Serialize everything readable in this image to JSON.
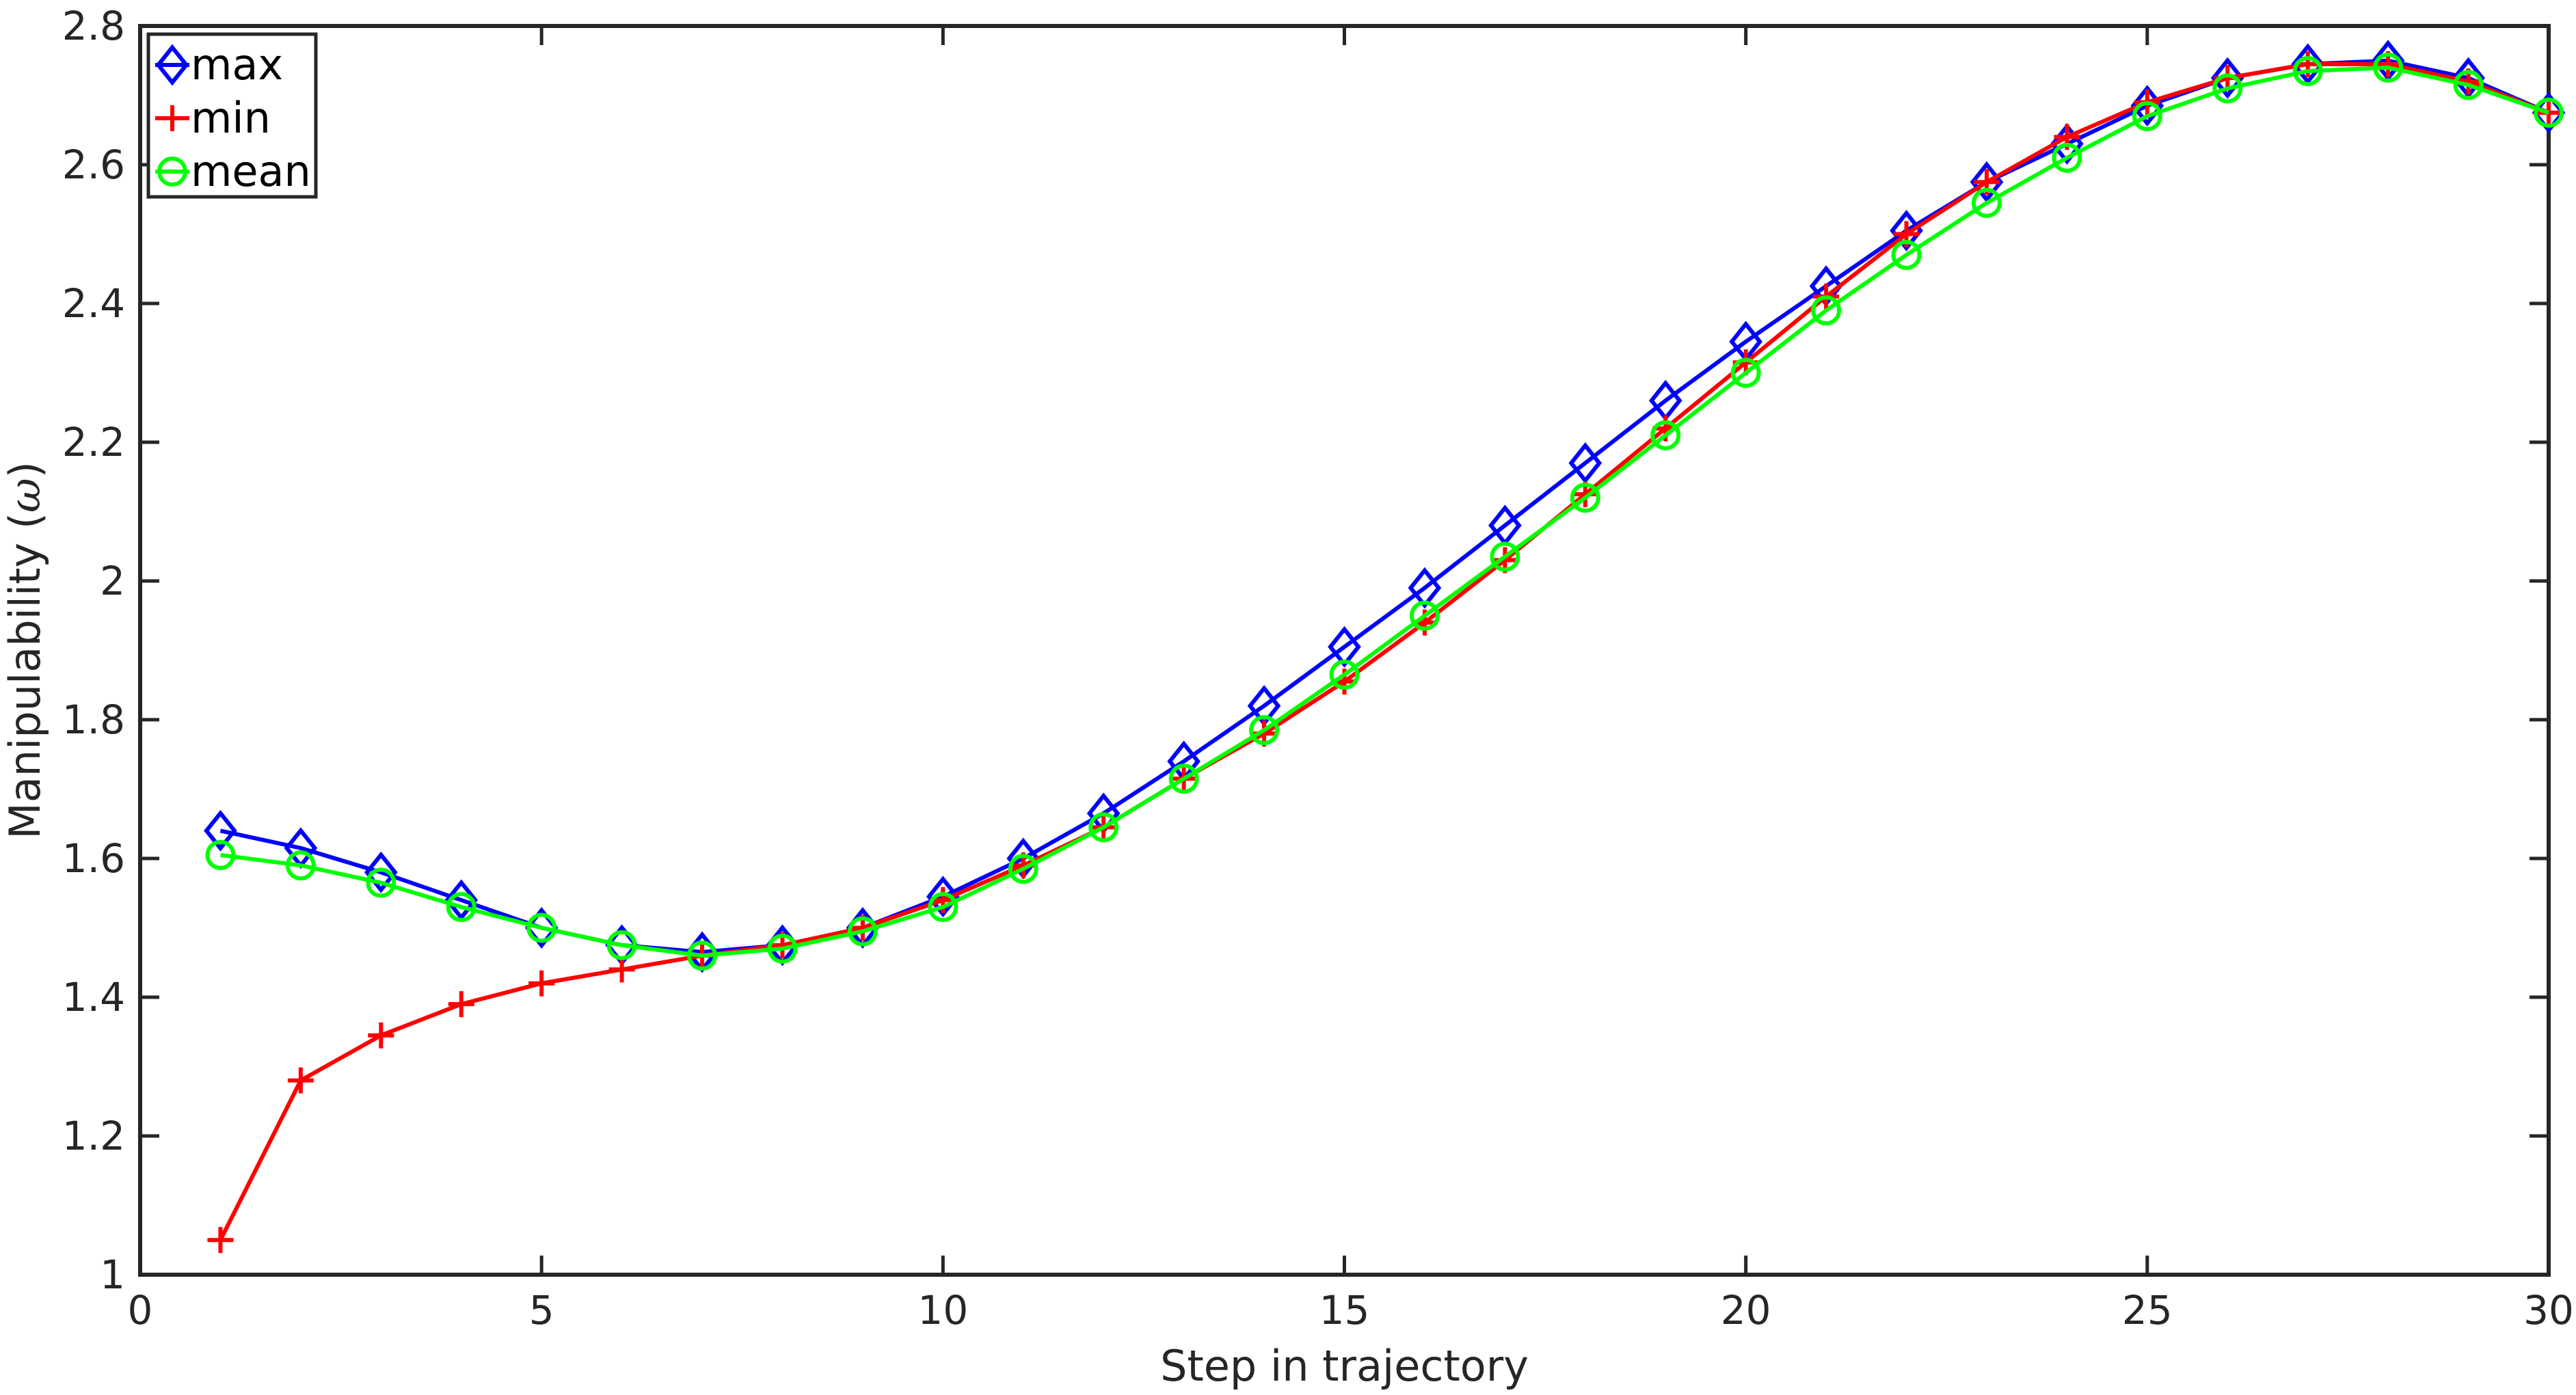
{
  "chart_data": {
    "type": "line",
    "title": "",
    "xlabel": "Step in trajectory",
    "ylabel_prefix": "Manipulability (",
    "ylabel_symbol": "ω",
    "ylabel_suffix": ")",
    "xlim": [
      0,
      30
    ],
    "ylim": [
      1,
      2.8
    ],
    "xticks": [
      0,
      5,
      10,
      15,
      20,
      25,
      30
    ],
    "xtick_labels": [
      "0",
      "5",
      "10",
      "15",
      "20",
      "25",
      "30"
    ],
    "yticks": [
      1,
      1.2,
      1.4,
      1.6,
      1.8,
      2,
      2.2,
      2.4,
      2.6,
      2.8
    ],
    "ytick_labels": [
      "1",
      "1.2",
      "1.4",
      "1.6",
      "1.8",
      "2",
      "2.2",
      "2.4",
      "2.6",
      "2.8"
    ],
    "grid": false,
    "legend_position": "top-left",
    "x": [
      1,
      2,
      3,
      4,
      5,
      6,
      7,
      8,
      9,
      10,
      11,
      12,
      13,
      14,
      15,
      16,
      17,
      18,
      19,
      20,
      21,
      22,
      23,
      24,
      25,
      26,
      27,
      28,
      29,
      30
    ],
    "series": [
      {
        "name": "max",
        "color": "#0000ff",
        "marker": "diamond",
        "values": [
          1.64,
          1.615,
          1.58,
          1.54,
          1.5,
          1.475,
          1.465,
          1.475,
          1.5,
          1.545,
          1.6,
          1.665,
          1.74,
          1.82,
          1.905,
          1.99,
          2.08,
          2.17,
          2.26,
          2.345,
          2.425,
          2.505,
          2.575,
          2.63,
          2.685,
          2.725,
          2.745,
          2.75,
          2.725,
          2.675
        ]
      },
      {
        "name": "min",
        "color": "#ff0000",
        "marker": "plus",
        "values": [
          1.05,
          1.28,
          1.345,
          1.39,
          1.42,
          1.44,
          1.46,
          1.475,
          1.5,
          1.54,
          1.59,
          1.645,
          1.715,
          1.78,
          1.855,
          1.94,
          2.03,
          2.125,
          2.22,
          2.315,
          2.41,
          2.5,
          2.575,
          2.64,
          2.69,
          2.725,
          2.745,
          2.745,
          2.72,
          2.675
        ]
      },
      {
        "name": "mean",
        "color": "#00ff00",
        "marker": "circle",
        "values": [
          1.605,
          1.59,
          1.565,
          1.53,
          1.5,
          1.475,
          1.46,
          1.47,
          1.495,
          1.53,
          1.585,
          1.645,
          1.715,
          1.785,
          1.865,
          1.95,
          2.035,
          2.12,
          2.21,
          2.3,
          2.39,
          2.47,
          2.545,
          2.61,
          2.67,
          2.71,
          2.735,
          2.74,
          2.715,
          2.675
        ]
      }
    ]
  }
}
